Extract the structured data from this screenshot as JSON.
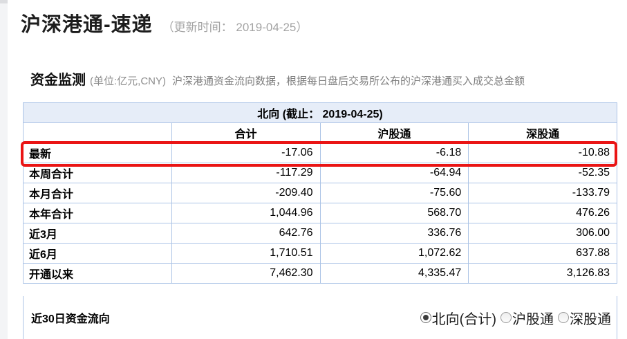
{
  "page": {
    "title": "沪深港通-速递",
    "update_time": "（更新时间： 2019-04-25）"
  },
  "section": {
    "title": "资金监测",
    "unit_note": "(单位:亿元,CNY)",
    "description": "沪深港通资金流向数据，根据每日盘后交易所公布的沪深港通买入成交总金额"
  },
  "table": {
    "band_title": "北向 (截止： 2019-04-25)",
    "columns": [
      "",
      "合计",
      "沪股通",
      "深股通"
    ],
    "rows": [
      {
        "label": "最新",
        "values": [
          "-17.06",
          "-6.18",
          "-10.88"
        ],
        "highlight": true
      },
      {
        "label": "本周合计",
        "values": [
          "-117.29",
          "-64.94",
          "-52.35"
        ],
        "highlight": false
      },
      {
        "label": "本月合计",
        "values": [
          "-209.40",
          "-75.60",
          "-133.79"
        ],
        "highlight": false
      },
      {
        "label": "本年合计",
        "values": [
          "1,044.96",
          "568.70",
          "476.26"
        ],
        "highlight": false
      },
      {
        "label": "近3月",
        "values": [
          "642.76",
          "336.76",
          "306.00"
        ],
        "highlight": false
      },
      {
        "label": "近6月",
        "values": [
          "1,710.51",
          "1,072.62",
          "637.88"
        ],
        "highlight": false
      },
      {
        "label": "开通以来",
        "values": [
          "7,462.30",
          "4,335.47",
          "3,126.83"
        ],
        "highlight": false
      }
    ]
  },
  "flow_section": {
    "label": "近30日资金流向",
    "options": [
      {
        "label": "北向(合计)",
        "selected": true
      },
      {
        "label": "沪股通",
        "selected": false
      },
      {
        "label": "深股通",
        "selected": false
      }
    ]
  },
  "colors": {
    "table_border": "#abc3e6",
    "band_background": "#e6edf8",
    "highlight_border": "#ea1515",
    "muted_text": "#a3a3a3"
  }
}
